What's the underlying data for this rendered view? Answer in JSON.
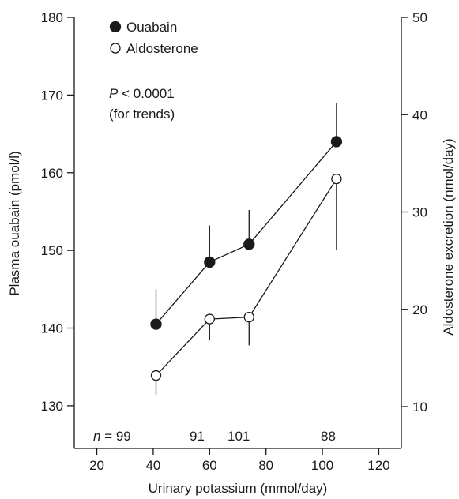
{
  "chart_data": {
    "type": "line",
    "xlabel": "Urinary potassium (mmol/day)",
    "ylabel": "Plasma ouabain (pmol/l)",
    "y2label": "Aldosterone excretion (nmol/day)",
    "xlim": [
      12,
      128
    ],
    "ylim": [
      124.5,
      180
    ],
    "y2lim": [
      5.7,
      50
    ],
    "xticks": [
      20,
      40,
      60,
      80,
      100,
      120
    ],
    "yticks": [
      130,
      140,
      150,
      160,
      170,
      180
    ],
    "y2ticks": [
      10,
      20,
      30,
      40,
      50
    ],
    "series": [
      {
        "name": "Ouabain",
        "axis": "left",
        "marker": "filled-circle",
        "x": [
          41,
          60,
          74,
          105
        ],
        "y": [
          140.5,
          148.5,
          150.8,
          164
        ],
        "err_up": [
          145,
          153.2,
          155.2,
          169
        ],
        "err_down": [
          null,
          null,
          null,
          null
        ]
      },
      {
        "name": "Aldosterone",
        "axis": "right",
        "marker": "open-circle",
        "x": [
          41,
          60,
          74,
          105
        ],
        "y": [
          13.2,
          19.0,
          19.2,
          33.4
        ],
        "err_up": [
          null,
          null,
          null,
          null
        ],
        "err_down": [
          11.2,
          16.8,
          16.3,
          26.1
        ]
      }
    ],
    "legend": {
      "placement": "top-left"
    },
    "annotation": {
      "p_symbol": "P",
      "p_rest": " < 0.0001",
      "note": "(for trends)"
    },
    "n_labels": {
      "prefix": "n",
      "eq": " = ",
      "values": [
        "99",
        "91",
        "101",
        "88"
      ]
    }
  }
}
